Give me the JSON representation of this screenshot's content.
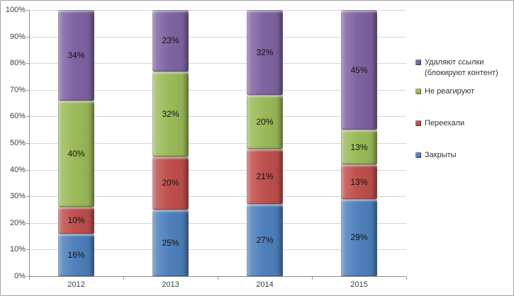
{
  "chart": {
    "background": "#FFFFFF",
    "border_color": "#A3A3A3",
    "grid_color": "#D6D6D6",
    "axis_color": "#8E8E8E",
    "tick_text_color": "#3E3E3E",
    "data_label_color": "#141414"
  },
  "chart_data": {
    "type": "bar",
    "subtype": "stacked-100-percent",
    "title": "",
    "xlabel": "",
    "ylabel": "",
    "categories": [
      "2012",
      "2013",
      "2014",
      "2015"
    ],
    "series": [
      {
        "name": "Закрыты",
        "color": "#4F81BD",
        "values": [
          16,
          25,
          27,
          29
        ]
      },
      {
        "name": "Переехали",
        "color": "#C0504D",
        "values": [
          10,
          20,
          21,
          13
        ]
      },
      {
        "name": "Не реагируют",
        "color": "#9BBB59",
        "values": [
          40,
          32,
          20,
          13
        ]
      },
      {
        "name": "Удаляют ссылки (блокируют контент)",
        "color": "#8064A2",
        "values": [
          34,
          23,
          32,
          45
        ]
      }
    ],
    "data_label_suffix": "%",
    "grid": true,
    "y_axis": {
      "min": 0,
      "max": 100,
      "tick_labels_top_to_bottom": [
        "100%",
        "90%",
        "80%",
        "70%",
        "60%",
        "50%",
        "40%",
        "30%",
        "20%",
        "10%",
        "0%"
      ]
    },
    "legend": {
      "position": "right",
      "entries_top_to_bottom": [
        {
          "label": "Удаляют ссылки (блокируют контент)",
          "color": "#8064A2"
        },
        {
          "label": "Не реагируют",
          "color": "#9BBB59"
        },
        {
          "label": "Переехали",
          "color": "#C0504D"
        },
        {
          "label": "Закрыты",
          "color": "#4F81BD"
        }
      ]
    }
  }
}
